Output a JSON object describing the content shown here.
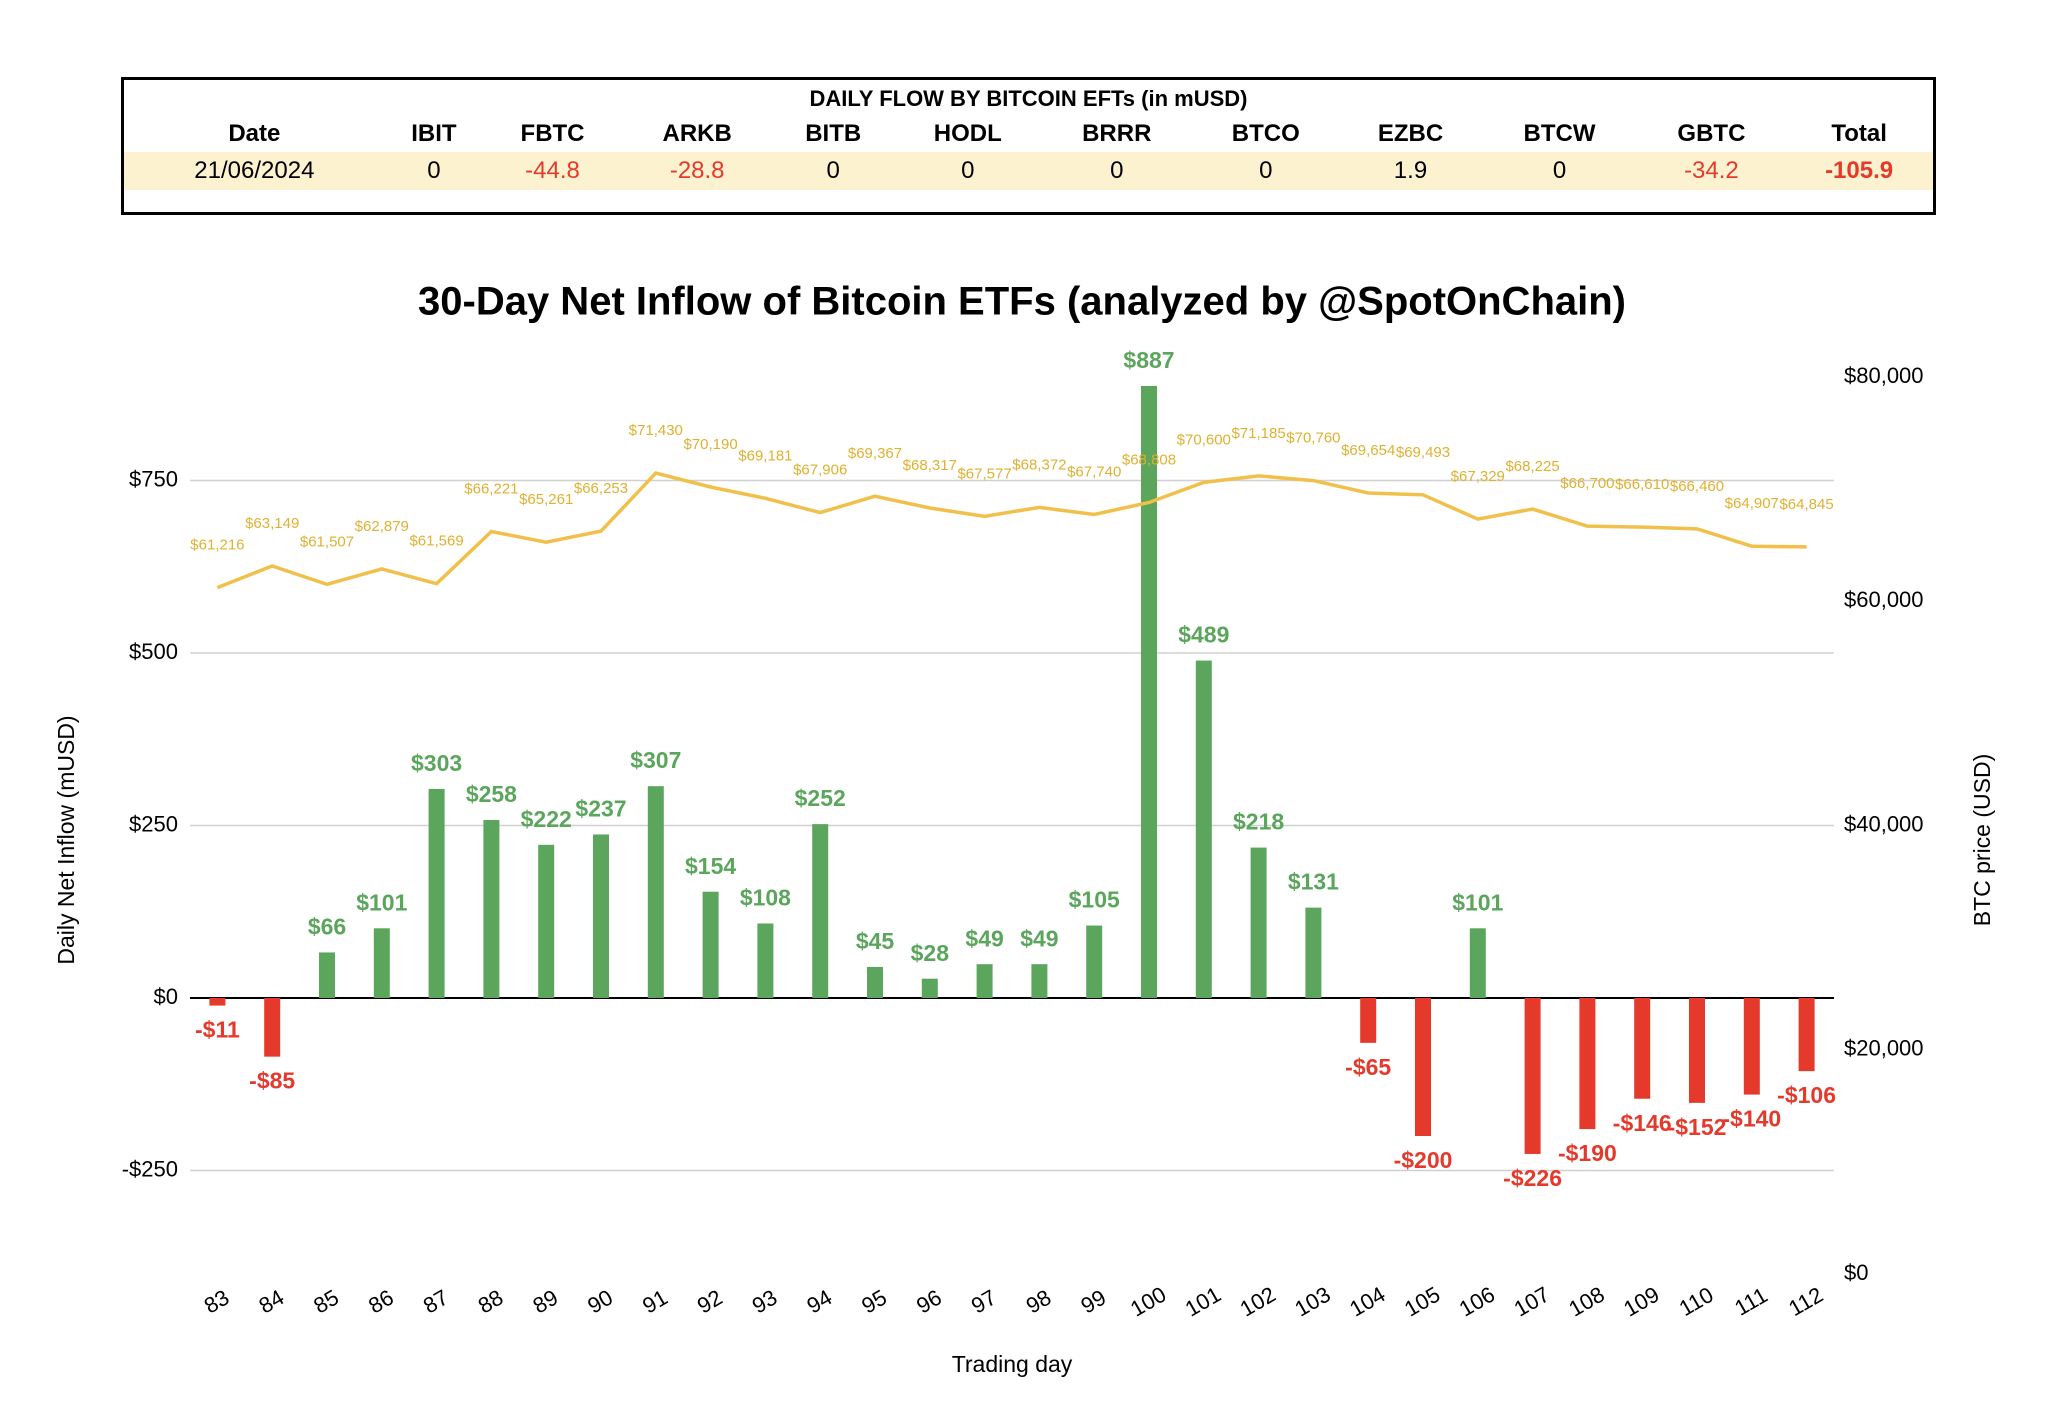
{
  "table": {
    "title": "DAILY FLOW BY BITCOIN EFTs (in mUSD)",
    "columns": [
      "Date",
      "IBIT",
      "FBTC",
      "ARKB",
      "BITB",
      "HODL",
      "BRRR",
      "BTCO",
      "EZBC",
      "BTCW",
      "GBTC",
      "Total"
    ],
    "rows": [
      [
        "21/06/2024",
        0,
        -44.8,
        -28.8,
        0,
        0,
        0,
        0,
        1.9,
        0,
        -34.2,
        -105.9
      ]
    ]
  },
  "chart_data": {
    "type": "bar",
    "title": "30-Day Net Inflow of Bitcoin ETFs (analyzed by @SpotOnChain)",
    "x_label": "Trading day",
    "y_label": "Daily Net Inflow (mUSD)",
    "y2_label": "BTC price (USD)",
    "categories": [
      "83",
      "84",
      "85",
      "86",
      "87",
      "88",
      "89",
      "90",
      "91",
      "92",
      "93",
      "94",
      "95",
      "96",
      "97",
      "98",
      "99",
      "100",
      "101",
      "102",
      "103",
      "104",
      "105",
      "106",
      "107",
      "108",
      "109",
      "110",
      "111",
      "112"
    ],
    "series": [
      {
        "type": "bar",
        "color": "#5ba55d",
        "negative_color": "#e5392b",
        "values": [
          -11,
          -85,
          66,
          101,
          303,
          258,
          222,
          237,
          307,
          154,
          108,
          252,
          45,
          28,
          49,
          49,
          105,
          887,
          489,
          218,
          131,
          -65,
          -200,
          101,
          -226,
          -190,
          -146,
          -152,
          -140,
          -106
        ],
        "value_labels": [
          "-$11",
          "-$85",
          "$66",
          "$101",
          "$303",
          "$258",
          "$222",
          "$237",
          "$307",
          "$154",
          "$108",
          "$252",
          "$45",
          "$28",
          "$49",
          "$49",
          "$105",
          "$887",
          "$489",
          "$218",
          "$131",
          "-$65",
          "-$200",
          "$101",
          "-$226",
          "-$190",
          "-$146",
          "-$152",
          "-$140",
          "-$106"
        ]
      },
      {
        "type": "line",
        "axis": "y2",
        "color": "#f0c04a",
        "values": [
          61216,
          63149,
          61507,
          62879,
          61569,
          66221,
          65261,
          66253,
          71430,
          70190,
          69181,
          67906,
          69367,
          68317,
          67577,
          68372,
          67740,
          68808,
          70600,
          71185,
          70760,
          69654,
          69493,
          67329,
          68225,
          66700,
          66610,
          66460,
          64907,
          64845
        ],
        "value_labels": [
          "$61,216",
          "$63,149",
          "$61,507",
          "$62,879",
          "$61,569",
          "$66,221",
          "$65,261",
          "$66,253",
          "$71,430",
          "$70,190",
          "$69,181",
          "$67,906",
          "$69,367",
          "$68,317",
          "$67,577",
          "$68,372",
          "$67,740",
          "$68,808",
          "$70,600",
          "$71,185",
          "$70,760",
          "$69,654",
          "$69,493",
          "$67,329",
          "$68,225",
          "$66,700",
          "$66,610",
          "$66,460",
          "$64,907",
          "$64,845"
        ]
      }
    ],
    "ylim": [
      -400,
      900
    ],
    "yticks": [
      {
        "value": -250,
        "label": "-$250"
      },
      {
        "value": 0,
        "label": "$0"
      },
      {
        "value": 250,
        "label": "$250"
      },
      {
        "value": 500,
        "label": "$500"
      },
      {
        "value": 750,
        "label": "$750"
      }
    ],
    "y2lim": [
      0,
      80000
    ],
    "y2ticks": [
      {
        "value": 0,
        "label": "$0"
      },
      {
        "value": 20000,
        "label": "$20,000"
      },
      {
        "value": 40000,
        "label": "$40,000"
      },
      {
        "value": 60000,
        "label": "$60,000"
      },
      {
        "value": 80000,
        "label": "$80,000"
      }
    ],
    "grid": true
  }
}
